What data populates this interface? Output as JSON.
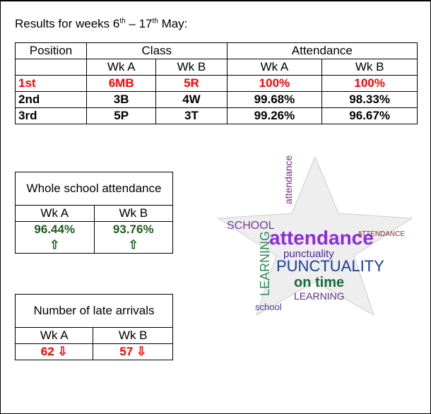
{
  "heading": {
    "parts": [
      "Results for weeks 6",
      "th",
      " – 17",
      "th",
      " May:"
    ]
  },
  "results_table": {
    "header": [
      "Position",
      "Class",
      "Attendance"
    ],
    "subheader": [
      "Wk A",
      "Wk B",
      "Wk A",
      "Wk B"
    ],
    "rows": [
      [
        "1st",
        "6MB",
        "5R",
        "100%",
        "100%"
      ],
      [
        "2nd",
        "3B",
        "4W",
        "99.68%",
        "98.33%"
      ],
      [
        "3rd",
        "5P",
        "3T",
        "99.26%",
        "96.67%"
      ]
    ]
  },
  "whole_school": {
    "title": "Whole school attendance",
    "columns": [
      "Wk A",
      "Wk B"
    ],
    "values": [
      "96.44%",
      "93.76%"
    ],
    "trends": [
      "⇧",
      "⇧"
    ]
  },
  "late_arrivals": {
    "title": "Number of late arrivals",
    "columns": [
      "Wk A",
      "Wk B"
    ],
    "values": [
      "62",
      "57"
    ],
    "trends": [
      "⇩",
      "⇩"
    ]
  },
  "word_cloud": {
    "words": [
      "attendance",
      "punctuality",
      "PUNCTUALITY",
      "on time",
      "LEARNING",
      "SCHOOL",
      "school",
      "ATTENDANCE"
    ]
  }
}
